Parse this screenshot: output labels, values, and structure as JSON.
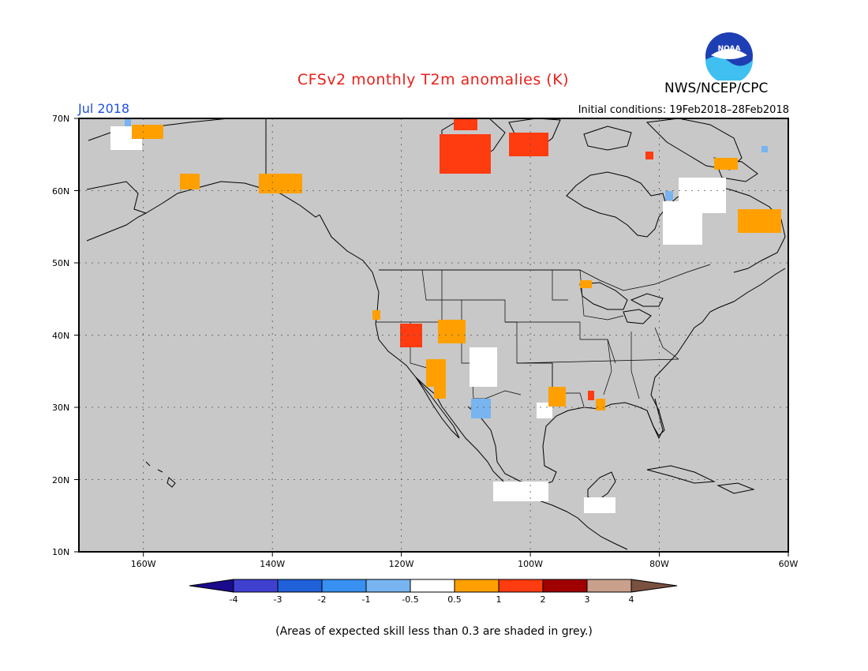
{
  "header": {
    "title": "CFSv2 monthly T2m anomalies (K)",
    "agency": "NWS/NCEP/CPC",
    "logo_text": "NOAA",
    "valid_month": "Jul 2018",
    "initial_conditions": "Initial conditions: 19Feb2018–28Feb2018"
  },
  "map": {
    "lon_range": [
      -170,
      -60
    ],
    "lat_range": [
      10,
      70
    ],
    "lat_labels": [
      "70N",
      "60N",
      "50N",
      "40N",
      "30N",
      "20N",
      "10N"
    ],
    "lon_labels": [
      "160W",
      "140W",
      "120W",
      "100W",
      "80W",
      "60W"
    ],
    "background_color": "#c8c8c8",
    "land_outline_color": "#000000"
  },
  "anomaly_regions": [
    {
      "category": "0.5 to 1",
      "color": "#ffa000",
      "places": [
        "western Alaska",
        "Yukon",
        "Nevada",
        "Utah",
        "Arizona",
        "Texas",
        "Labrador",
        "Louisiana"
      ]
    },
    {
      "category": "1 to 2",
      "color": "#ff3b10",
      "places": [
        "Nunavut",
        "Nevada",
        "Baffin Bay"
      ]
    },
    {
      "category": "-0.5 to 0.5",
      "color": "#ffffff",
      "places": [
        "Alaska",
        "Quebec",
        "Colorado",
        "New Mexico",
        "Mexico",
        "Central America"
      ]
    },
    {
      "category": "-1 to -0.5",
      "color": "#78b4f0",
      "places": [
        "Sonora",
        "Hudson Bay coast"
      ]
    }
  ],
  "colorbar": {
    "labels": [
      "-4",
      "-3",
      "-2",
      "-1",
      "-0.5",
      "0.5",
      "1",
      "2",
      "3",
      "4"
    ],
    "colors": [
      "#1a0a8c",
      "#4040d0",
      "#2060d8",
      "#3890f0",
      "#78b4f0",
      "#ffffff",
      "#ffa000",
      "#ff3b10",
      "#a00000",
      "#c8a08c",
      "#7a5040"
    ]
  },
  "footnote": "(Areas of expected skill less than 0.3 are shaded in grey.)"
}
